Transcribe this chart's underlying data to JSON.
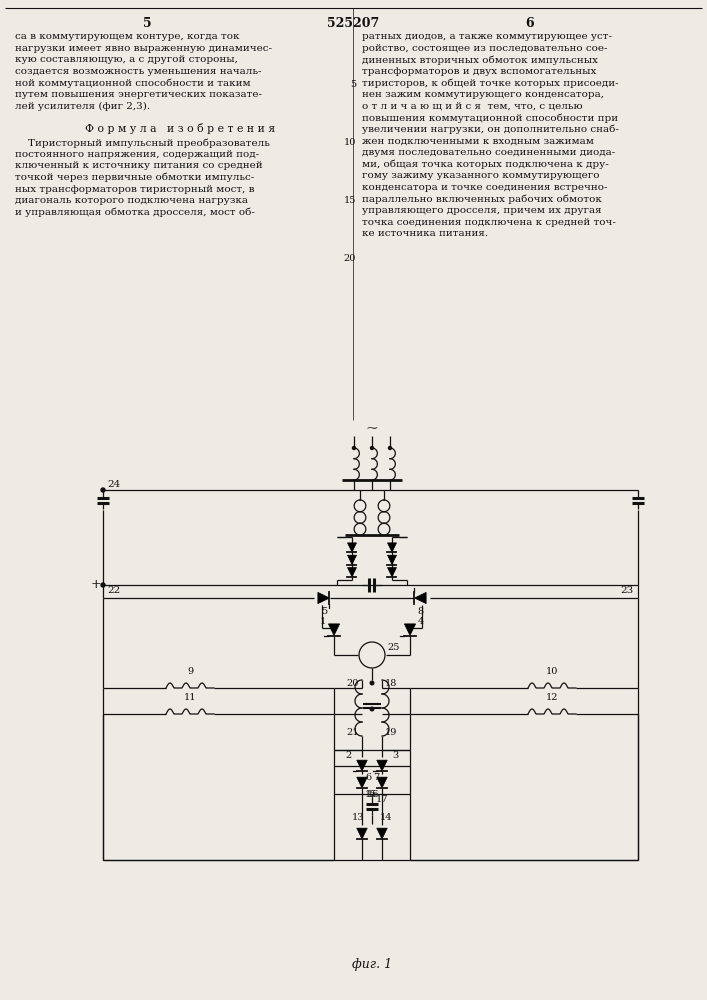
{
  "title": "525207",
  "page_left": "5",
  "page_right": "6",
  "col1_text": [
    "са в коммутирующем контуре, когда ток",
    "нагрузки имеет явно выраженную динамичес-",
    "кую составляющую, а с другой стороны,",
    "создается возможность уменьшения началь-",
    "ной коммутационной способности и таким",
    "путем повышения энергетических показате-",
    "лей усилителя (фиг 2,3)."
  ],
  "formula_header": "Ф о р м у л а   и з о б р е т е н и я",
  "formula_text": [
    "    Тиристорный импульсный преобразователь",
    "постоянного напряжения, содержащий под-",
    "ключенный к источнику питания со средней",
    "точкой через первичные обмотки импульс-",
    "ных трансформаторов тиристорный мост, в",
    "диагональ которого подключена нагрузка",
    "и управляющая обмотка дросселя, мост об-"
  ],
  "col2_all": [
    "ратных диодов, а также коммутирующее уст-",
    "ройство, состоящее из последовательно сое-",
    "диненных вторичных обмоток импульсных",
    "трансформаторов и двух вспомогательных",
    "тиристоров, к общей точке которых присоеди-",
    "нен зажим коммутирующего конденсатора,",
    "о т л и ч а ю щ и й с я  тем, что, с целью",
    "повышения коммутационной способности при",
    "увеличении нагрузки, он дополнительно снаб-",
    "жен подключенными к входным зажимам",
    "двумя последовательно соединенными диода-",
    "ми, общая точка которых подключена к дру-",
    "гому зажиму указанного коммутирующего",
    "конденсатора и точке соединения встречно-",
    "параллельно включенных рабочих обмоток",
    "управляющего дросселя, причем их другая",
    "точка соединения подключена к средней точ-",
    "ке источника питания."
  ],
  "line_num_rows": [
    4,
    9,
    14,
    19
  ],
  "line_num_labels": [
    "5",
    "10",
    "15",
    "20"
  ],
  "fig_label": "фиг. 1",
  "bg_color": "#eeebe4",
  "text_color": "#111111",
  "line_color": "#111111"
}
